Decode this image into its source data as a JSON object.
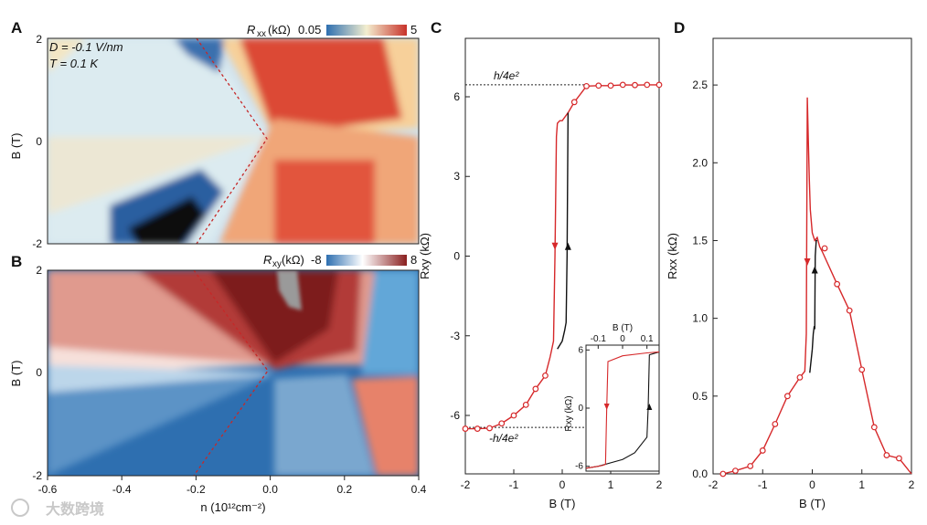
{
  "panels": {
    "A": {
      "letter": "A",
      "colorbar_label": "R",
      "colorbar_sub": "xx",
      "colorbar_unit": " (kΩ)",
      "colorbar_min": "0.05",
      "colorbar_max": "5",
      "annotation_1": "D = -0.1 V/nm",
      "annotation_2": "T = 0.1 K",
      "ylabel": "B (T)",
      "yticks": [
        "2",
        "0",
        "-2"
      ]
    },
    "B": {
      "letter": "B",
      "colorbar_label": "R",
      "colorbar_sub": "xy",
      "colorbar_unit": " (kΩ)",
      "colorbar_min": "-8",
      "colorbar_max": "8",
      "ylabel": "B (T)",
      "yticks": [
        "2",
        "0",
        "-2"
      ],
      "xlabel": "n (10¹²cm⁻²)",
      "xticks": [
        "-0.6",
        "-0.4",
        "-0.2",
        "0.0",
        "0.2",
        "0.4"
      ]
    },
    "C": {
      "letter": "C"
    },
    "D": {
      "letter": "D"
    }
  },
  "colors": {
    "red_trace": "#d6282a",
    "black_trace": "#111111",
    "map_red": "#c8322a",
    "map_blue": "#2e6fb0"
  },
  "watermark": "大数跨境",
  "chart_data": [
    {
      "panel": "A",
      "type": "heatmap",
      "quantity": "Rxx (kΩ)",
      "xlim": [
        -0.6,
        0.4
      ],
      "ylim": [
        -2,
        2
      ],
      "colorbar_range": [
        0.05,
        5
      ],
      "colormap": "blue-white-red",
      "dashed_guide": [
        [
          -0.15,
          2
        ],
        [
          0.0,
          0
        ],
        [
          -0.15,
          -2
        ]
      ]
    },
    {
      "panel": "B",
      "type": "heatmap",
      "quantity": "Rxy (kΩ)",
      "xlim": [
        -0.6,
        0.4
      ],
      "ylim": [
        -2,
        2
      ],
      "colorbar_range": [
        -8,
        8
      ],
      "colormap": "blue-white-red",
      "xlabel": "n (10¹²cm⁻²)",
      "dashed_guide": [
        [
          -0.2,
          2
        ],
        [
          0.0,
          0
        ],
        [
          -0.2,
          -2
        ]
      ]
    },
    {
      "panel": "C",
      "type": "line",
      "xlabel": "B (T)",
      "ylabel": "Rxy (kΩ)",
      "xlim": [
        -2,
        2
      ],
      "ylim": [
        -8.2,
        8.2
      ],
      "xticks": [
        "-2",
        "-1",
        "0",
        "1",
        "2"
      ],
      "yticks": [
        "6",
        "3",
        "0",
        "-3",
        "-6"
      ],
      "quantum_lines": [
        {
          "label": "h/4e²",
          "value": 6.45
        },
        {
          "label": "-h/4e²",
          "value": -6.45
        }
      ],
      "series": [
        {
          "color": "#d6282a",
          "x": [
            -2,
            -1.75,
            -1.5,
            -1.25,
            -1.0,
            -0.75,
            -0.55,
            -0.35,
            -0.25,
            -0.18,
            -0.15,
            -0.12,
            -0.1,
            -0.05,
            0.0,
            0.12,
            0.25,
            0.5,
            0.75,
            1.0,
            1.25,
            1.5,
            1.75,
            2.0
          ],
          "y": [
            -6.5,
            -6.5,
            -6.48,
            -6.3,
            -6.0,
            -5.6,
            -5.0,
            -4.5,
            -3.8,
            -3.2,
            0,
            4.5,
            5.0,
            5.1,
            5.1,
            5.4,
            5.8,
            6.4,
            6.42,
            6.42,
            6.45,
            6.44,
            6.45,
            6.45
          ]
        },
        {
          "color": "#111111",
          "x": [
            -0.1,
            0.0,
            0.05,
            0.08,
            0.1,
            0.12
          ],
          "y": [
            -3.5,
            -3.2,
            -2.8,
            -2.5,
            0.0,
            5.4
          ]
        }
      ],
      "markers_x": [
        -2,
        -1.75,
        -1.5,
        -1.25,
        -1.0,
        -0.75,
        -0.55,
        -0.35,
        0.25,
        0.5,
        0.75,
        1.0,
        1.25,
        1.5,
        1.75,
        2.0
      ],
      "markers_y": [
        -6.5,
        -6.5,
        -6.48,
        -6.3,
        -6.0,
        -5.6,
        -5.0,
        -4.5,
        5.8,
        6.4,
        6.42,
        6.42,
        6.45,
        6.44,
        6.45,
        6.45
      ],
      "inset": {
        "xlabel": "B (T)",
        "ylabel": "Rxy (kΩ)",
        "xlim": [
          -0.15,
          0.15
        ],
        "ylim": [
          -6.5,
          6.5
        ],
        "xticks": [
          "-0.1",
          "0",
          "0.1"
        ],
        "yticks": [
          "6",
          "0",
          "-6"
        ],
        "red_x": [
          -0.15,
          -0.1,
          -0.08,
          -0.07,
          -0.065,
          -0.06,
          0.0,
          0.1,
          0.15
        ],
        "red_y": [
          -6.2,
          -6.0,
          -5.9,
          -5.8,
          0,
          4.8,
          5.4,
          5.7,
          5.8
        ],
        "black_x": [
          -0.15,
          -0.1,
          0.0,
          0.05,
          0.1,
          0.105,
          0.11,
          0.15
        ],
        "black_y": [
          -6.2,
          -6.0,
          -5.3,
          -4.6,
          -3.0,
          0,
          5.5,
          5.8
        ]
      }
    },
    {
      "panel": "D",
      "type": "line",
      "xlabel": "B (T)",
      "ylabel": "Rxx (kΩ)",
      "xlim": [
        -2,
        2
      ],
      "ylim": [
        0,
        2.8
      ],
      "xticks": [
        "-2",
        "-1",
        "0",
        "1",
        "2"
      ],
      "yticks": [
        "0.0",
        "0.5",
        "1.0",
        "1.5",
        "2.0",
        "2.5"
      ],
      "series": [
        {
          "color": "#d6282a",
          "x": [
            -1.8,
            -1.55,
            -1.25,
            -1.0,
            -0.75,
            -0.5,
            -0.25,
            -0.15,
            -0.12,
            -0.1,
            -0.08,
            -0.06,
            -0.04,
            0.0,
            0.05,
            0.1,
            0.15,
            0.2,
            0.5,
            0.75,
            1.0,
            1.25,
            1.5,
            1.75,
            2.0
          ],
          "y": [
            0.0,
            0.02,
            0.05,
            0.15,
            0.32,
            0.5,
            0.62,
            0.66,
            0.9,
            2.42,
            2.15,
            1.9,
            1.7,
            1.55,
            1.5,
            1.52,
            1.46,
            1.43,
            1.22,
            1.05,
            0.67,
            0.3,
            0.12,
            0.1,
            0.0
          ]
        },
        {
          "color": "#111111",
          "x": [
            -0.05,
            0.0,
            0.02,
            0.04,
            0.05,
            0.06,
            0.08,
            0.1
          ],
          "y": [
            0.65,
            0.8,
            0.9,
            0.95,
            0.93,
            1.4,
            1.5,
            1.5
          ]
        }
      ],
      "markers_x": [
        -1.8,
        -1.55,
        -1.25,
        -1.0,
        -0.75,
        -0.5,
        -0.25,
        0.25,
        0.5,
        0.75,
        1.0,
        1.25,
        1.5,
        1.75
      ],
      "markers_y": [
        0.0,
        0.02,
        0.05,
        0.15,
        0.32,
        0.5,
        0.62,
        1.45,
        1.22,
        1.05,
        0.67,
        0.3,
        0.12,
        0.1
      ]
    }
  ]
}
